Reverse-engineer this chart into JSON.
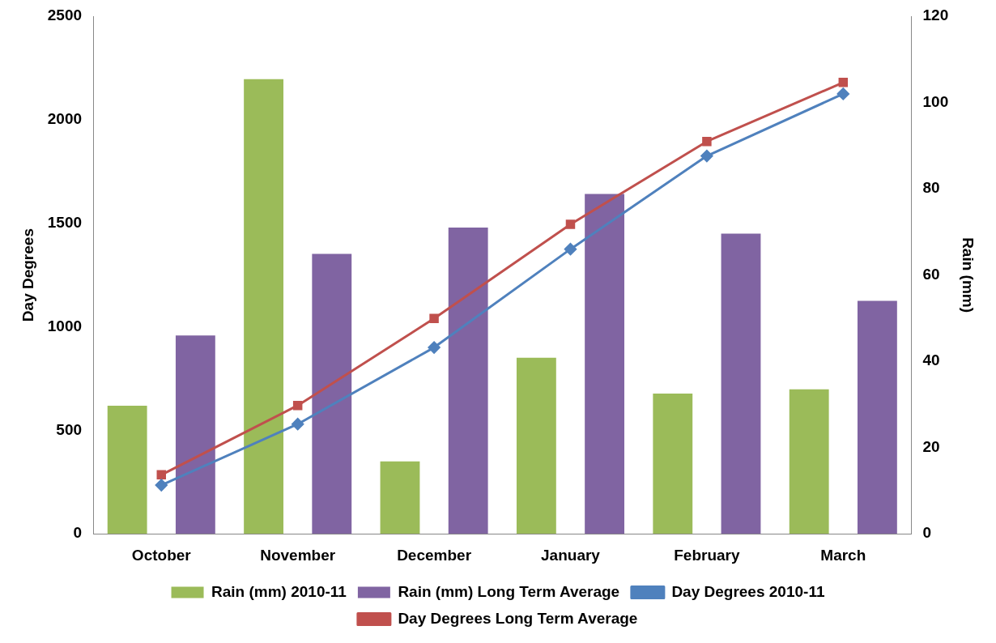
{
  "chart_data": {
    "type": "bar",
    "ylabel": "Day Degrees",
    "y2label": "Rain (mm)",
    "categories": [
      "October",
      "November",
      "December",
      "January",
      "February",
      "March"
    ],
    "series": [
      {
        "name": "Rain (mm) 2010-11",
        "axis": "y2",
        "color": "#9bbb59",
        "values": [
          29.7,
          105.4,
          16.8,
          40.8,
          32.5,
          33.5
        ]
      },
      {
        "name": "Rain (mm) Long Term Average",
        "axis": "y2",
        "color": "#8064a2",
        "values": [
          46,
          64.9,
          71,
          78.8,
          69.6,
          54
        ]
      },
      {
        "name": "Day Degrees 2010-11",
        "type": "line",
        "color": "#4f81bd",
        "marker": "diamond",
        "values": [
          235,
          530,
          900,
          1375,
          1825,
          2125
        ]
      },
      {
        "name": "Day Degrees Long Term Average",
        "type": "line",
        "color": "#c0504d",
        "marker": "square",
        "values": [
          285,
          620,
          1040,
          1495,
          1895,
          2180
        ]
      }
    ],
    "ylim": [
      0,
      2500
    ],
    "yticks": [
      0,
      500,
      1000,
      1500,
      2000,
      2500
    ],
    "y2lim": [
      0,
      120
    ],
    "y2ticks": [
      0,
      20,
      40,
      60,
      80,
      100,
      120
    ],
    "grid": false,
    "legend": "bottom"
  }
}
